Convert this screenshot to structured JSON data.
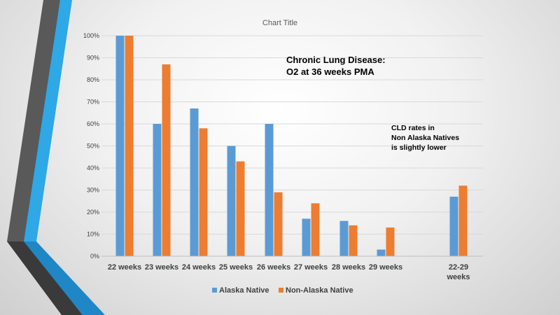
{
  "chart_data": {
    "type": "bar",
    "title": "Chart Title",
    "categories": [
      "22 weeks",
      "23 weeks",
      "24 weeks",
      "25 weeks",
      "26 weeks",
      "27 weeks",
      "28 weeks",
      "29 weeks",
      "22-29 weeks"
    ],
    "series": [
      {
        "name": "Alaska Native",
        "color": "#5b9bd5",
        "values": [
          100,
          60,
          67,
          50,
          60,
          17,
          16,
          3,
          27
        ]
      },
      {
        "name": "Non-Alaska Native",
        "color": "#ed7d31",
        "values": [
          100,
          87,
          58,
          43,
          29,
          24,
          14,
          13,
          32
        ]
      }
    ],
    "ylim": [
      0,
      100
    ],
    "yticks": [
      "0%",
      "10%",
      "20%",
      "30%",
      "40%",
      "50%",
      "60%",
      "70%",
      "80%",
      "90%",
      "100%"
    ],
    "legend_position": "bottom",
    "annotations": {
      "main": [
        "Chronic Lung Disease:",
        "O2 at 36 weeks PMA"
      ],
      "note": [
        "CLD rates in",
        "Non Alaska Natives",
        "is slightly lower"
      ]
    }
  }
}
